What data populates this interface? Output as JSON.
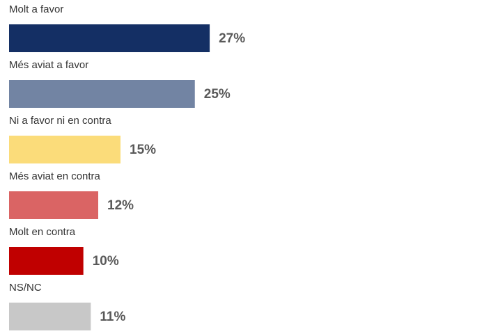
{
  "chart_data": {
    "type": "bar",
    "orientation": "horizontal",
    "categories": [
      "Molt a favor",
      "Més aviat a favor",
      "Ni a favor ni en contra",
      "Més aviat en contra",
      "Molt en contra",
      "NS/NC"
    ],
    "values": [
      27,
      25,
      15,
      12,
      10,
      11
    ],
    "value_labels": [
      "27%",
      "25%",
      "15%",
      "12%",
      "10%",
      "11%"
    ],
    "colors": [
      "#142f64",
      "#7284a3",
      "#fbdc7a",
      "#da6464",
      "#c00000",
      "#c8c8c8"
    ]
  }
}
